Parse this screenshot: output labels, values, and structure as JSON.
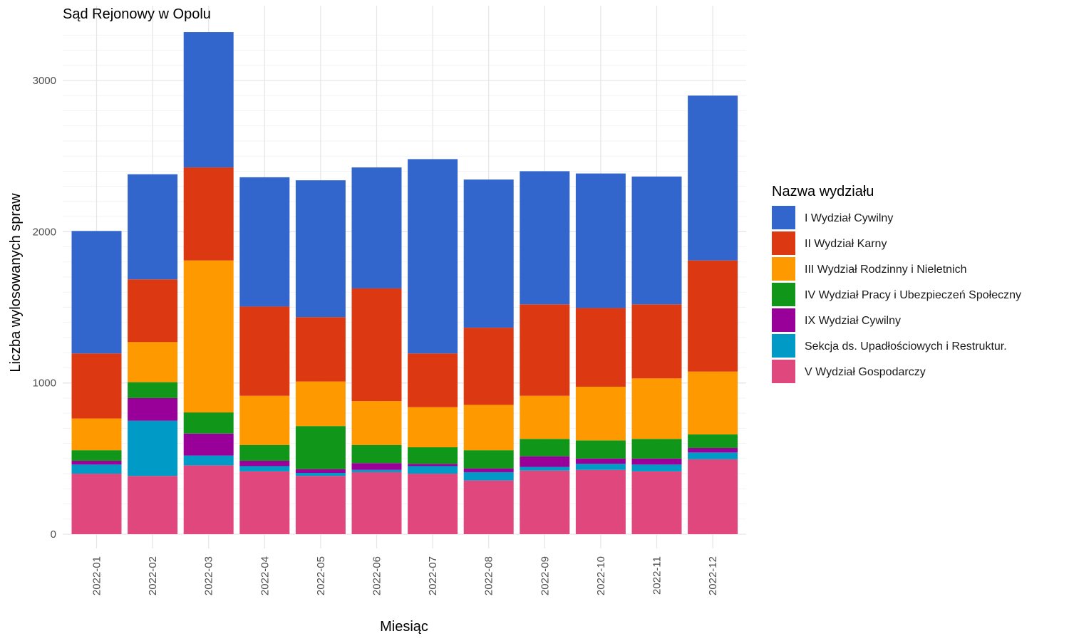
{
  "chart_data": {
    "type": "bar",
    "stacked": true,
    "title": "Sąd Rejonowy w Opolu",
    "xlabel": "Miesiąc",
    "ylabel": "Liczba wylosowanych spraw",
    "ylim": [
      0,
      3350
    ],
    "yticks": [
      0,
      1000,
      2000,
      3000
    ],
    "grid": true,
    "legend_title": "Nazwa wydziału",
    "legend_position": "right",
    "categories": [
      "2022-01",
      "2022-02",
      "2022-03",
      "2022-04",
      "2022-05",
      "2022-06",
      "2022-07",
      "2022-08",
      "2022-09",
      "2022-10",
      "2022-11",
      "2022-12"
    ],
    "series": [
      {
        "name": "V Wydział Gospodarczy",
        "color": "#E0477C",
        "values": [
          400,
          385,
          455,
          415,
          385,
          410,
          400,
          355,
          420,
          425,
          415,
          495
        ]
      },
      {
        "name": "Sekcja ds. Upadłościowych i Restruktur.",
        "color": "#009AC7",
        "values": [
          60,
          365,
          65,
          35,
          20,
          15,
          50,
          55,
          25,
          40,
          45,
          45
        ]
      },
      {
        "name": "IX Wydział Cywilny",
        "color": "#990099",
        "values": [
          25,
          150,
          145,
          35,
          25,
          45,
          15,
          25,
          70,
          35,
          40,
          30
        ]
      },
      {
        "name": "IV Wydział Pracy i Ubezpieczeń Społeczny",
        "color": "#109618",
        "values": [
          70,
          105,
          140,
          105,
          285,
          120,
          110,
          120,
          115,
          120,
          130,
          90
        ]
      },
      {
        "name": "III Wydział Rodzinny i Nieletnich",
        "color": "#FF9900",
        "values": [
          210,
          265,
          1005,
          325,
          295,
          290,
          265,
          300,
          285,
          355,
          400,
          415
        ]
      },
      {
        "name": "II Wydział Karny",
        "color": "#DC3912",
        "values": [
          430,
          415,
          615,
          590,
          425,
          745,
          355,
          510,
          605,
          520,
          490,
          735
        ]
      },
      {
        "name": "I Wydział Cywilny",
        "color": "#3366CC",
        "values": [
          810,
          695,
          895,
          855,
          905,
          800,
          1285,
          980,
          880,
          890,
          845,
          1090
        ]
      }
    ],
    "legend_order": [
      "I Wydział Cywilny",
      "II Wydział Karny",
      "III Wydział Rodzinny i Nieletnich",
      "IV Wydział Pracy i Ubezpieczeń Społeczny",
      "IX Wydział Cywilny",
      "Sekcja ds. Upadłościowych i Restruktur.",
      "V Wydział Gospodarczy"
    ]
  }
}
